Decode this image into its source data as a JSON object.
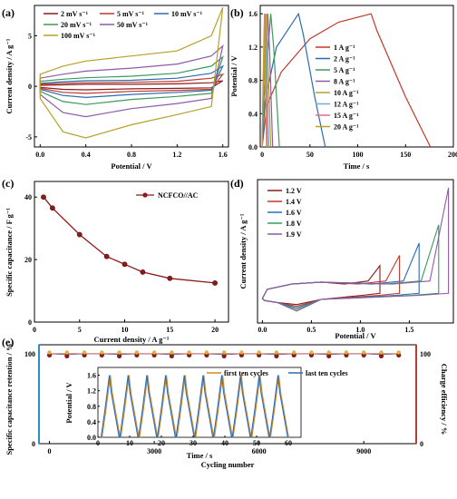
{
  "panels": {
    "a": {
      "label": "(a)",
      "xlabel": "Potential / V",
      "ylabel": "Current density / A g⁻¹",
      "xticks": [
        "0.0",
        "0.4",
        "0.8",
        "1.2",
        "1.6"
      ],
      "yticks": [
        "5",
        "0",
        "-5"
      ],
      "legend": [
        "2 mV s⁻¹",
        "5 mV s⁻¹",
        "10 mV s⁻¹",
        "20 mV s⁻¹",
        "50 mV s⁻¹",
        "100 mV s⁻¹"
      ]
    },
    "b": {
      "label": "(b)",
      "xlabel": "Time / s",
      "ylabel": "Potential / V",
      "xticks": [
        "0",
        "50",
        "100",
        "150",
        "200"
      ],
      "yticks": [
        "0.0",
        "0.4",
        "0.8",
        "1.2",
        "1.6"
      ],
      "legend": [
        "1 A g⁻¹",
        "2 A g⁻¹",
        "5 A g⁻¹",
        "8 A g⁻¹",
        "10 A g⁻¹",
        "12 A g⁻¹",
        "15 A g⁻¹",
        "20 A g⁻¹"
      ]
    },
    "c": {
      "label": "(c)",
      "xlabel": "Current density / A g⁻¹",
      "ylabel": "Specific capacitance / F g⁻¹",
      "xticks": [
        "0",
        "5",
        "10",
        "15",
        "20"
      ],
      "yticks": [
        "0",
        "20",
        "40"
      ],
      "legend": [
        "NCFCO//AC"
      ]
    },
    "d": {
      "label": "(d)",
      "xlabel": "Potential / V",
      "ylabel": "Current density / A g⁻¹",
      "xticks": [
        "0.0",
        "0.5",
        "1.0",
        "1.5"
      ],
      "legend": [
        "1.2 V",
        "1.4 V",
        "1.6 V",
        "1.8 V",
        "1.9 V"
      ]
    },
    "e": {
      "label": "(e)",
      "xlabel": "Cycling number",
      "ylabel": "Specific capacitance retention / %",
      "ylabel2": "Charge efficiency / %",
      "xticks": [
        "0",
        "3000",
        "6000",
        "9000"
      ],
      "yticks": [
        "0",
        "100"
      ],
      "yticks2": [
        "0",
        "100"
      ],
      "inset": {
        "xlabel": "Time / s",
        "ylabel": "Potential / V",
        "xticks": [
          "0",
          "10",
          "20",
          "30",
          "40",
          "50",
          "60"
        ],
        "yticks": [
          "0.0",
          "0.4",
          "0.8",
          "1.2",
          "1.6"
        ],
        "legend": [
          "first ten cycles",
          "last ten cycles"
        ]
      }
    }
  },
  "colors": {
    "blue": "#2b6cb0",
    "green": "#3a9a5b",
    "purple": "#8e5aa8",
    "olive": "#b8a02a",
    "red": "#c0392b",
    "darkred": "#8b1a1a",
    "orange": "#d08a28",
    "lightblue": "#6fa8dc",
    "pink": "#e36a8a",
    "teal": "#2aa198"
  },
  "chart_data": [
    {
      "type": "line",
      "panel": "a",
      "title": "",
      "xlabel": "Potential / V",
      "ylabel": "Current density / A g⁻¹",
      "xlim": [
        -0.05,
        1.65
      ],
      "ylim": [
        -6,
        8
      ],
      "series": [
        {
          "name": "2 mV s⁻¹",
          "x": [
            0,
            0.2,
            0.4,
            0.8,
            1.2,
            1.5,
            1.6
          ],
          "y_anodic": [
            0.1,
            0.15,
            0.2,
            0.2,
            0.25,
            0.35,
            0.55
          ],
          "y_cathodic": [
            -0.1,
            -0.3,
            -0.35,
            -0.25,
            -0.2,
            -0.15,
            0.55
          ]
        },
        {
          "name": "5 mV s⁻¹",
          "x": [
            0,
            0.2,
            0.4,
            0.8,
            1.2,
            1.5,
            1.6
          ],
          "y_anodic": [
            0.2,
            0.3,
            0.35,
            0.4,
            0.5,
            0.8,
            1.2
          ],
          "y_cathodic": [
            -0.2,
            -0.6,
            -0.7,
            -0.5,
            -0.4,
            -0.3,
            1.2
          ]
        },
        {
          "name": "10 mV s⁻¹",
          "x": [
            0,
            0.2,
            0.4,
            0.8,
            1.2,
            1.5,
            1.6
          ],
          "y_anodic": [
            0.3,
            0.45,
            0.55,
            0.6,
            0.8,
            1.3,
            2.0
          ],
          "y_cathodic": [
            -0.3,
            -0.9,
            -1.1,
            -0.8,
            -0.6,
            -0.4,
            2.0
          ]
        },
        {
          "name": "20 mV s⁻¹",
          "x": [
            0,
            0.2,
            0.4,
            0.8,
            1.2,
            1.5,
            1.6
          ],
          "y_anodic": [
            0.5,
            0.7,
            0.85,
            1.0,
            1.3,
            2.0,
            2.9
          ],
          "y_cathodic": [
            -0.5,
            -1.5,
            -1.8,
            -1.3,
            -1.0,
            -0.7,
            2.9
          ]
        },
        {
          "name": "50 mV s⁻¹",
          "x": [
            0,
            0.2,
            0.4,
            0.8,
            1.2,
            1.5,
            1.6
          ],
          "y_anodic": [
            0.8,
            1.2,
            1.5,
            1.8,
            2.2,
            3.0,
            4.0
          ],
          "y_cathodic": [
            -0.8,
            -2.6,
            -3.0,
            -2.2,
            -1.7,
            -1.2,
            4.0
          ]
        },
        {
          "name": "100 mV s⁻¹",
          "x": [
            0,
            0.2,
            0.4,
            0.8,
            1.2,
            1.5,
            1.6
          ],
          "y_anodic": [
            1.2,
            2.0,
            2.5,
            3.0,
            3.5,
            5.0,
            7.8
          ],
          "y_cathodic": [
            -1.2,
            -4.5,
            -5.1,
            -3.8,
            -2.8,
            -2.0,
            7.8
          ]
        }
      ]
    },
    {
      "type": "line",
      "panel": "b",
      "title": "",
      "xlabel": "Time / s",
      "ylabel": "Potential / V",
      "xlim": [
        -2,
        200
      ],
      "ylim": [
        0,
        1.7
      ],
      "series": [
        {
          "name": "1 A g⁻¹",
          "x": [
            0,
            5,
            20,
            50,
            80,
            114,
            120,
            150,
            176
          ],
          "y": [
            0,
            0.5,
            0.9,
            1.3,
            1.5,
            1.6,
            1.4,
            0.6,
            0
          ]
        },
        {
          "name": "2 A g⁻¹",
          "x": [
            0,
            3,
            15,
            38,
            43,
            55,
            66
          ],
          "y": [
            0,
            0.55,
            1.2,
            1.6,
            1.35,
            0.6,
            0
          ]
        },
        {
          "name": "5 A g⁻¹",
          "x": [
            0,
            2,
            7,
            9,
            12,
            18
          ],
          "y": [
            0,
            0.6,
            1.3,
            1.6,
            1.2,
            0
          ]
        },
        {
          "name": "8 A g⁻¹",
          "x": [
            0,
            1,
            5,
            6,
            8,
            11
          ],
          "y": [
            0,
            0.6,
            1.4,
            1.6,
            1.1,
            0
          ]
        },
        {
          "name": "10 A g⁻¹",
          "x": [
            0,
            1,
            4,
            5,
            6,
            9
          ],
          "y": [
            0,
            0.6,
            1.4,
            1.6,
            1.1,
            0
          ]
        },
        {
          "name": "12 A g⁻¹",
          "x": [
            0,
            1,
            3,
            4,
            5,
            7
          ],
          "y": [
            0,
            0.7,
            1.4,
            1.6,
            1.0,
            0
          ]
        },
        {
          "name": "15 A g⁻¹",
          "x": [
            0,
            1,
            2.5,
            3,
            4,
            5.5
          ],
          "y": [
            0,
            0.7,
            1.4,
            1.6,
            1.0,
            0
          ]
        },
        {
          "name": "20 A g⁻¹",
          "x": [
            0,
            0.8,
            2,
            2.5,
            3,
            4.5
          ],
          "y": [
            0,
            0.7,
            1.4,
            1.6,
            1.0,
            0
          ]
        }
      ]
    },
    {
      "type": "line",
      "panel": "c",
      "title": "",
      "xlabel": "Current density / A g⁻¹",
      "ylabel": "Specific capacitance / F g⁻¹",
      "xlim": [
        0,
        21.5
      ],
      "ylim": [
        0,
        45
      ],
      "series": [
        {
          "name": "NCFCO//AC",
          "x": [
            1,
            2,
            5,
            8,
            10,
            12,
            15,
            20
          ],
          "y": [
            40,
            36.5,
            28,
            21,
            18.5,
            16,
            14,
            12.5
          ]
        }
      ]
    },
    {
      "type": "line",
      "panel": "d",
      "title": "",
      "xlabel": "Potential / V",
      "ylabel": "Current density / A g⁻¹",
      "xlim": [
        -0.05,
        1.95
      ],
      "ylim": [
        -1.5,
        5.5
      ],
      "series": [
        {
          "name": "1.2 V",
          "vmax": 1.2,
          "ipeak": 1.3
        },
        {
          "name": "1.4 V",
          "vmax": 1.4,
          "ipeak": 1.8
        },
        {
          "name": "1.6 V",
          "vmax": 1.6,
          "ipeak": 2.4
        },
        {
          "name": "1.8 V",
          "vmax": 1.8,
          "ipeak": 3.3
        },
        {
          "name": "1.9 V",
          "vmax": 1.9,
          "ipeak": 5.1
        }
      ]
    },
    {
      "type": "scatter",
      "panel": "e",
      "title": "",
      "xlabel": "Cycling number",
      "ylabel": "Specific capacitance retention / %",
      "y2label": "Charge efficiency / %",
      "xlim": [
        -300,
        10500
      ],
      "ylim": [
        0,
        110
      ],
      "series": [
        {
          "name": "Specific capacitance retention",
          "x": [
            0,
            500,
            1000,
            1500,
            2000,
            2500,
            3000,
            3500,
            4000,
            4500,
            5000,
            5500,
            6000,
            6500,
            7000,
            7500,
            8000,
            8500,
            9000,
            9500,
            10000
          ],
          "y": [
            100,
            99,
            100,
            100,
            99,
            100,
            100,
            99,
            100,
            100,
            99,
            100,
            100,
            99,
            100,
            100,
            99,
            100,
            100,
            99,
            100
          ]
        },
        {
          "name": "Charge efficiency",
          "x": [
            0,
            500,
            1000,
            1500,
            2000,
            2500,
            3000,
            3500,
            4000,
            4500,
            5000,
            5500,
            6000,
            6500,
            7000,
            7500,
            8000,
            8500,
            9000,
            9500,
            10000
          ],
          "y": [
            100,
            100,
            100,
            100,
            100,
            100,
            100,
            100,
            100,
            100,
            100,
            100,
            100,
            100,
            100,
            100,
            100,
            100,
            100,
            100,
            100
          ]
        }
      ]
    },
    {
      "type": "line",
      "panel": "e-inset",
      "title": "",
      "xlabel": "Time / s",
      "ylabel": "Potential / V",
      "xlim": [
        0,
        64
      ],
      "ylim": [
        0,
        1.8
      ],
      "series": [
        {
          "name": "first ten cycles",
          "period": 5.9,
          "offset": 0.3
        },
        {
          "name": "last ten cycles",
          "period": 5.9,
          "offset": 0
        }
      ]
    }
  ]
}
